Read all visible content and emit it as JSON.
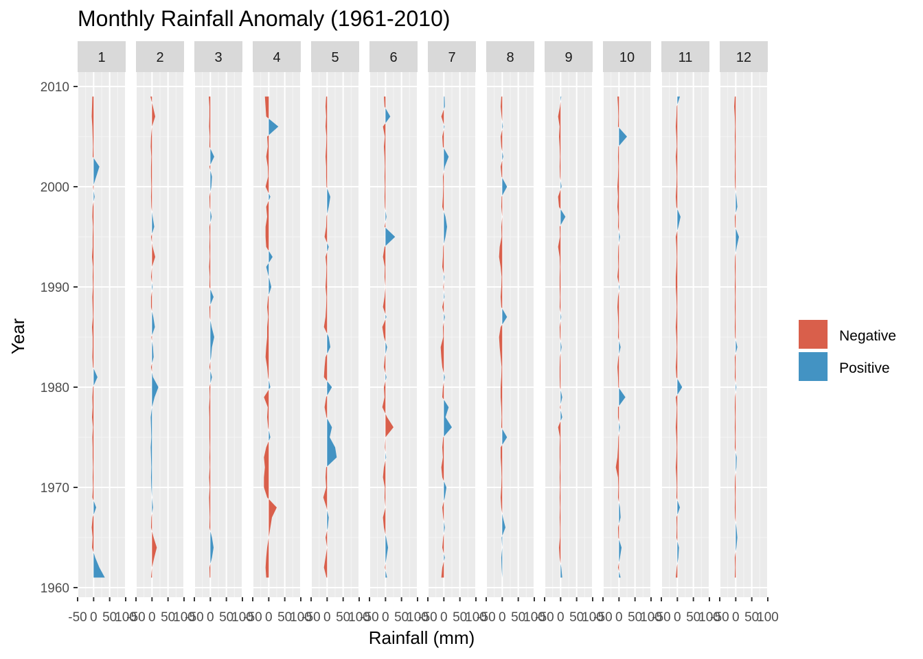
{
  "chart_data": {
    "type": "area",
    "title": "Monthly Rainfall Anomaly (1961-2010)",
    "xlabel": "Rainfall (mm)",
    "ylabel": "Year",
    "xlim": [
      -50,
      100
    ],
    "ylim": [
      1960,
      2010
    ],
    "x_ticks": [
      -50,
      0,
      50,
      100
    ],
    "x_tick_labels": [
      "-50",
      "0",
      "50",
      "100"
    ],
    "y_ticks": [
      1960,
      1970,
      1980,
      1990,
      2000,
      2010
    ],
    "y_tick_labels": [
      "1960",
      "1970",
      "1980",
      "1990",
      "2000",
      "2010"
    ],
    "grid": true,
    "legend_position": "right",
    "legend": [
      {
        "label": "Negative",
        "color": "#D95F4B"
      },
      {
        "label": "Positive",
        "color": "#4393C3"
      }
    ],
    "years": [
      1961,
      1962,
      1963,
      1964,
      1965,
      1966,
      1967,
      1968,
      1969,
      1970,
      1971,
      1972,
      1973,
      1974,
      1975,
      1976,
      1977,
      1978,
      1979,
      1980,
      1981,
      1982,
      1983,
      1984,
      1985,
      1986,
      1987,
      1988,
      1989,
      1990,
      1991,
      1992,
      1993,
      1994,
      1995,
      1996,
      1997,
      1998,
      1999,
      2000,
      2001,
      2002,
      2003,
      2004,
      2005,
      2006,
      2007,
      2008,
      2009
    ],
    "panels": [
      {
        "month": "1",
        "values": [
          35,
          18,
          5,
          -5,
          -3,
          -6,
          -3,
          8,
          -4,
          -2,
          -3,
          -2,
          -3,
          -3,
          -4,
          -2,
          -5,
          -3,
          -4,
          -2,
          12,
          -2,
          -4,
          -3,
          -3,
          -5,
          -2,
          -3,
          -4,
          -2,
          -3,
          -2,
          -5,
          -3,
          -3,
          -2,
          -4,
          -3,
          3,
          -2,
          8,
          18,
          -3,
          -2,
          -3,
          -4,
          -6,
          -5,
          -4
        ]
      },
      {
        "month": "2",
        "values": [
          -3,
          0,
          7,
          15,
          5,
          -3,
          -2,
          3,
          0,
          -2,
          -3,
          -2,
          -3,
          -4,
          -2,
          -3,
          -4,
          0,
          8,
          20,
          3,
          -3,
          5,
          3,
          -2,
          9,
          4,
          -3,
          -3,
          2,
          -3,
          0,
          10,
          2,
          -3,
          7,
          2,
          -2,
          -3,
          -2,
          -3,
          -3,
          -2,
          -4,
          -3,
          0,
          10,
          3,
          -5
        ]
      },
      {
        "month": "3",
        "values": [
          -2,
          -3,
          5,
          10,
          5,
          -3,
          -2,
          -3,
          -4,
          -2,
          -4,
          -2,
          -3,
          -2,
          -3,
          -3,
          -3,
          -4,
          -2,
          -3,
          5,
          -3,
          2,
          5,
          12,
          4,
          -2,
          -3,
          10,
          -3,
          -2,
          -4,
          -2,
          -3,
          -2,
          -3,
          4,
          -2,
          -3,
          3,
          5,
          -3,
          12,
          -3,
          -2,
          -4,
          -3,
          -3,
          -5
        ]
      },
      {
        "month": "4",
        "values": [
          -8,
          -10,
          -8,
          -5,
          0,
          5,
          10,
          25,
          -5,
          -15,
          -15,
          -12,
          -15,
          -8,
          5,
          -2,
          -5,
          -3,
          -15,
          5,
          -2,
          -5,
          -10,
          -8,
          -5,
          -5,
          -2,
          -5,
          -2,
          8,
          0,
          -8,
          12,
          -8,
          -10,
          -10,
          -5,
          -8,
          5,
          -10,
          -2,
          -3,
          -8,
          -3,
          -5,
          30,
          -8,
          -10,
          -12
        ]
      },
      {
        "month": "5",
        "values": [
          -2,
          -10,
          -5,
          0,
          -5,
          2,
          5,
          -2,
          -12,
          -3,
          -5,
          -3,
          30,
          25,
          8,
          15,
          -2,
          -8,
          -3,
          15,
          -10,
          -8,
          -5,
          10,
          5,
          -10,
          -5,
          -3,
          -2,
          -5,
          -3,
          -2,
          -5,
          5,
          -8,
          -3,
          -2,
          5,
          10,
          -2,
          -3,
          -3,
          -5,
          -3,
          -2,
          -5,
          -3,
          -5,
          -3
        ]
      },
      {
        "month": "6",
        "values": [
          5,
          -2,
          3,
          8,
          2,
          -5,
          -8,
          0,
          -3,
          -2,
          -8,
          -5,
          2,
          -2,
          0,
          25,
          5,
          -10,
          -3,
          -5,
          3,
          -5,
          -2,
          5,
          -5,
          -10,
          3,
          -8,
          -3,
          0,
          -3,
          -2,
          -8,
          -3,
          30,
          -3,
          3,
          -2,
          -3,
          -2,
          -3,
          -2,
          -3,
          -5,
          -2,
          -8,
          15,
          -3,
          -5
        ]
      },
      {
        "month": "7",
        "values": [
          -8,
          -5,
          3,
          -5,
          -2,
          3,
          -2,
          -5,
          3,
          8,
          -5,
          -8,
          -3,
          -5,
          -2,
          25,
          5,
          15,
          -5,
          -3,
          3,
          -5,
          -8,
          -10,
          -2,
          -3,
          3,
          -5,
          2,
          -2,
          2,
          -5,
          -3,
          -2,
          5,
          10,
          5,
          -5,
          -3,
          -2,
          -3,
          3,
          15,
          -3,
          -5,
          2,
          -8,
          3,
          2
        ]
      },
      {
        "month": "8",
        "values": [
          0,
          -2,
          -3,
          0,
          -2,
          10,
          2,
          -3,
          -5,
          -3,
          -2,
          -3,
          -5,
          -5,
          15,
          -3,
          -2,
          -3,
          -5,
          -5,
          -3,
          -2,
          -5,
          -8,
          -10,
          -5,
          15,
          -3,
          -5,
          -3,
          -2,
          -5,
          -10,
          -8,
          -2,
          -3,
          0,
          -3,
          -2,
          15,
          -2,
          -5,
          3,
          -3,
          -5,
          2,
          -2,
          -5,
          -3
        ]
      },
      {
        "month": "9",
        "values": [
          5,
          2,
          -3,
          -5,
          -2,
          -2,
          -3,
          -2,
          -3,
          -2,
          -3,
          -2,
          -3,
          -3,
          -2,
          -8,
          5,
          -2,
          5,
          -2,
          -3,
          -3,
          -2,
          3,
          -2,
          -3,
          2,
          -3,
          -2,
          -3,
          -3,
          -2,
          -3,
          -8,
          -2,
          -3,
          15,
          -5,
          -8,
          3,
          -2,
          -3,
          -2,
          -3,
          -5,
          -3,
          -8,
          -2,
          2
        ]
      },
      {
        "month": "10",
        "values": [
          5,
          -3,
          3,
          8,
          -2,
          -3,
          5,
          3,
          -3,
          -2,
          -3,
          -10,
          -5,
          -3,
          -2,
          3,
          -3,
          -3,
          20,
          -2,
          -3,
          -5,
          -2,
          5,
          -3,
          -2,
          -3,
          -5,
          -3,
          2,
          -5,
          -2,
          -3,
          -2,
          3,
          -3,
          -2,
          -5,
          -3,
          -5,
          -3,
          -2,
          -3,
          -2,
          25,
          -3,
          -2,
          -3,
          -5
        ]
      },
      {
        "month": "11",
        "values": [
          -5,
          -2,
          3,
          5,
          -3,
          -2,
          -3,
          8,
          -3,
          -2,
          -3,
          -5,
          -3,
          -2,
          -3,
          -5,
          -3,
          -2,
          -5,
          15,
          -3,
          -5,
          -3,
          -2,
          -3,
          -5,
          -3,
          -2,
          -3,
          -5,
          -5,
          -3,
          -2,
          -3,
          -5,
          3,
          10,
          -3,
          -5,
          -3,
          -2,
          -3,
          -5,
          -2,
          -3,
          -5,
          -3,
          -2,
          8
        ]
      },
      {
        "month": "12",
        "values": [
          -3,
          -2,
          -3,
          2,
          5,
          2,
          -2,
          -3,
          -2,
          -3,
          -2,
          2,
          3,
          -3,
          -2,
          -3,
          -2,
          -3,
          -2,
          2,
          -3,
          -2,
          -3,
          5,
          -2,
          -3,
          -2,
          -3,
          -2,
          -3,
          -2,
          -3,
          -2,
          3,
          10,
          -2,
          -3,
          5,
          2,
          -2,
          -3,
          -2,
          -3,
          -2,
          -3,
          -2,
          -3,
          -5,
          -3
        ]
      }
    ]
  }
}
